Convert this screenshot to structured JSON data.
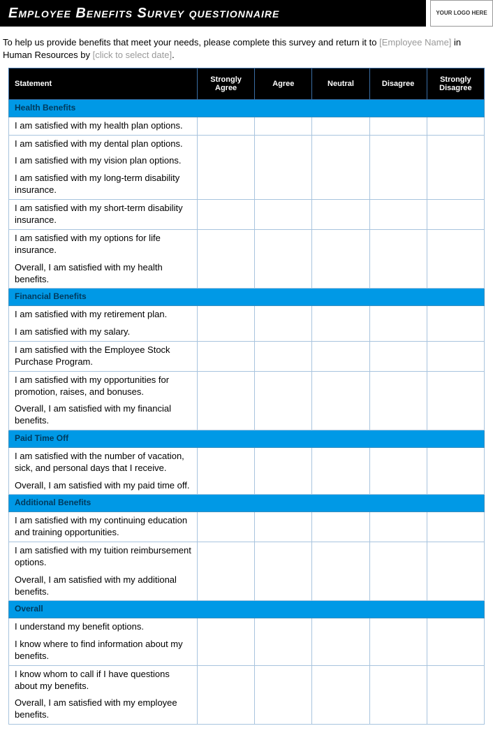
{
  "title": "Employee Benefits Survey questionnaire",
  "logo_placeholder": "YOUR LOGO HERE",
  "intro": {
    "prefix": "To help us provide benefits that meet your needs, please complete this survey and return it to ",
    "name_placeholder": "[Employee Name]",
    "mid": " in Human Resources by ",
    "date_placeholder": "[click to select date]",
    "suffix": "."
  },
  "columns": {
    "statement": "Statement",
    "c1": "Strongly Agree",
    "c2": "Agree",
    "c3": "Neutral",
    "c4": "Disagree",
    "c5": "Strongly Disagree"
  },
  "colors": {
    "header_bg": "#000000",
    "header_fg": "#ffffff",
    "section_bg": "#0099e6",
    "section_fg": "#003a5d",
    "cell_border": "#a8c4de",
    "placeholder": "#9a9a9a"
  },
  "sections": [
    {
      "label": "Health Benefits",
      "rows": [
        {
          "text": "I am satisfied with my health plan options.",
          "join_below": false
        },
        {
          "text": "I am satisfied with my dental plan options.",
          "join_below": true
        },
        {
          "text": "I am satisfied with my vision plan options.",
          "join_below": true
        },
        {
          "text": "I am satisfied with my long-term disability insurance.",
          "join_below": false
        },
        {
          "text": "I am satisfied with my short-term disability insurance.",
          "join_below": false
        },
        {
          "text": "I am satisfied with my options for life insurance.",
          "join_below": true
        },
        {
          "text": "Overall, I am satisfied with my health benefits.",
          "join_below": false
        }
      ]
    },
    {
      "label": "Financial Benefits",
      "rows": [
        {
          "text": "I am satisfied with my retirement plan.",
          "join_below": true
        },
        {
          "text": "I am satisfied with my salary.",
          "join_below": false
        },
        {
          "text": "I am satisfied with the Employee Stock Purchase Program.",
          "join_below": false
        },
        {
          "text": "I am satisfied with my opportunities for promotion, raises, and bonuses.",
          "join_below": true
        },
        {
          "text": "Overall, I am satisfied with my financial benefits.",
          "join_below": false
        }
      ]
    },
    {
      "label": "Paid Time Off",
      "rows": [
        {
          "text": "I am satisfied with the number of vacation, sick, and personal days that I receive.",
          "join_below": true
        },
        {
          "text": "Overall, I am satisfied with my paid time off.",
          "join_below": false
        }
      ]
    },
    {
      "label": "Additional Benefits",
      "rows": [
        {
          "text": "I am satisfied with my continuing education and training opportunities.",
          "join_below": false
        },
        {
          "text": "I am satisfied with my tuition reimbursement options.",
          "join_below": true
        },
        {
          "text": "Overall, I am satisfied with my additional benefits.",
          "join_below": false
        }
      ]
    },
    {
      "label": "Overall",
      "rows": [
        {
          "text": "I understand my benefit options.",
          "join_below": true
        },
        {
          "text": "I know where to find information about my benefits.",
          "join_below": false
        },
        {
          "text": "I know whom to call if I have questions about my benefits.",
          "join_below": true
        },
        {
          "text": "Overall, I am satisfied with my employee benefits.",
          "join_below": false
        }
      ]
    }
  ]
}
